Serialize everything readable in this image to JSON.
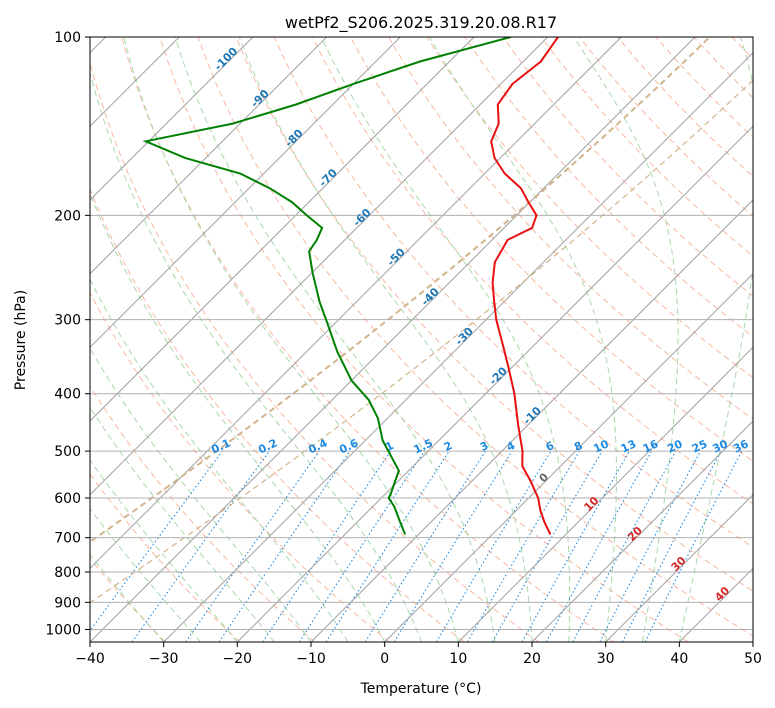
{
  "chart_data": {
    "type": "line",
    "title": "wetPf2_S206.2025.319.20.08.R17",
    "xlabel": "Temperature (°C)",
    "ylabel": "Pressure (hPa)",
    "xlim": [
      -40,
      50
    ],
    "ylim": [
      1050,
      100
    ],
    "skew": 45,
    "x_ticks": [
      -40,
      -30,
      -20,
      -10,
      0,
      10,
      20,
      30,
      40,
      50
    ],
    "x_tick_labels": [
      "−40",
      "−30",
      "−20",
      "−10",
      "0",
      "10",
      "20",
      "30",
      "40",
      "50"
    ],
    "y_ticks": [
      100,
      200,
      300,
      400,
      500,
      600,
      700,
      800,
      900,
      1000
    ],
    "y_tick_labels": [
      "100",
      "200",
      "300",
      "400",
      "500",
      "600",
      "700",
      "800",
      "900",
      "1000"
    ],
    "grid": true,
    "colors": {
      "temperature": "#e8100f",
      "dewpoint": "#008000",
      "isotherm": "#a0a0a0",
      "grid": "#b0b0b0",
      "dry_adiabat": "#f8b8a0",
      "moist_adiabat": "#a8d8a8",
      "mixing_ratio": "#1e8ae0",
      "isotherm_label": "#1f77b4",
      "warm_label": "#d62728",
      "zero_label": "#666666",
      "curve": "#d2b48c"
    },
    "series": [
      {
        "name": "Temperature",
        "points": [
          [
            100,
            -58.6
          ],
          [
            110,
            -57.6
          ],
          [
            120,
            -58.4
          ],
          [
            130,
            -57.6
          ],
          [
            140,
            -54.9
          ],
          [
            150,
            -53.5
          ],
          [
            160,
            -50.8
          ],
          [
            170,
            -47.3
          ],
          [
            180,
            -43.1
          ],
          [
            190,
            -40.2
          ],
          [
            200,
            -37.3
          ],
          [
            210,
            -36.2
          ],
          [
            220,
            -37.9
          ],
          [
            240,
            -36.6
          ],
          [
            260,
            -34.1
          ],
          [
            280,
            -31.3
          ],
          [
            300,
            -28.6
          ],
          [
            330,
            -24.4
          ],
          [
            360,
            -20.6
          ],
          [
            400,
            -16.1
          ],
          [
            450,
            -11.5
          ],
          [
            500,
            -7.2
          ],
          [
            530,
            -5.2
          ],
          [
            560,
            -2.2
          ],
          [
            600,
            1.3
          ],
          [
            630,
            3.3
          ],
          [
            660,
            5.5
          ],
          [
            690,
            7.8
          ]
        ]
      },
      {
        "name": "Dewpoint",
        "points": [
          [
            100,
            -65.0
          ],
          [
            110,
            -74.0
          ],
          [
            120,
            -80.0
          ],
          [
            130,
            -85.0
          ],
          [
            140,
            -91.0
          ],
          [
            150,
            -100.4
          ],
          [
            160,
            -92.8
          ],
          [
            170,
            -83.2
          ],
          [
            180,
            -77.2
          ],
          [
            190,
            -72.3
          ],
          [
            200,
            -68.5
          ],
          [
            210,
            -64.7
          ],
          [
            220,
            -63.8
          ],
          [
            230,
            -63.3
          ],
          [
            250,
            -59.9
          ],
          [
            280,
            -55.0
          ],
          [
            300,
            -51.7
          ],
          [
            340,
            -45.8
          ],
          [
            380,
            -40.0
          ],
          [
            410,
            -35.0
          ],
          [
            440,
            -31.3
          ],
          [
            480,
            -27.6
          ],
          [
            520,
            -23.3
          ],
          [
            540,
            -21.3
          ],
          [
            560,
            -20.5
          ],
          [
            590,
            -19.3
          ],
          [
            600,
            -19.0
          ],
          [
            620,
            -17.1
          ],
          [
            660,
            -14.1
          ],
          [
            690,
            -11.9
          ]
        ]
      }
    ],
    "isotherm_labels": [
      "-100",
      "-90",
      "-80",
      "-70",
      "-60",
      "-50",
      "-40",
      "-30",
      "-20",
      "-10",
      "0",
      "10",
      "20",
      "30",
      "40"
    ],
    "mixing_ratio_labels": [
      "0.1",
      "0.2",
      "0.4",
      "0.6",
      "1",
      "1.5",
      "2",
      "3",
      "4",
      "6",
      "8",
      "10",
      "13",
      "16",
      "20",
      "25",
      "30",
      "36"
    ]
  }
}
